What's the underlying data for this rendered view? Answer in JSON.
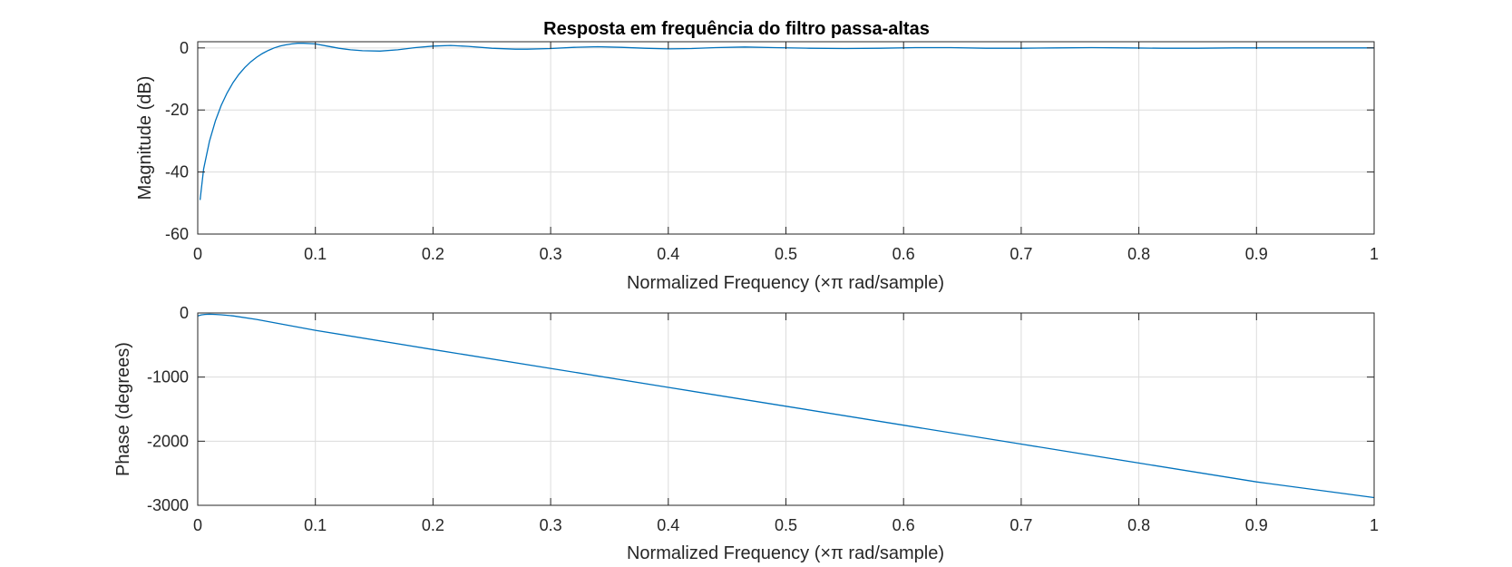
{
  "chart_data": [
    {
      "type": "line",
      "title": "Resposta em frequência do filtro passa-altas",
      "xlabel": "Normalized Frequency  (×π rad/sample)",
      "ylabel": "Magnitude (dB)",
      "xlim": [
        0,
        1
      ],
      "ylim": [
        -60,
        2
      ],
      "xticks": [
        0,
        0.1,
        0.2,
        0.3,
        0.4,
        0.5,
        0.6,
        0.7,
        0.8,
        0.9,
        1
      ],
      "xtick_labels": [
        "0",
        "0.1",
        "0.2",
        "0.3",
        "0.4",
        "0.5",
        "0.6",
        "0.7",
        "0.8",
        "0.9",
        "1"
      ],
      "yticks": [
        -60,
        -40,
        -20,
        0
      ],
      "ytick_labels": [
        "-60",
        "-40",
        "-20",
        "0"
      ],
      "grid": true,
      "line_color": "#0072BD",
      "series": [
        {
          "x": [
            0.002,
            0.005,
            0.01,
            0.015,
            0.02,
            0.025,
            0.03,
            0.035,
            0.04,
            0.045,
            0.05,
            0.055,
            0.06,
            0.065,
            0.07,
            0.075,
            0.08,
            0.085,
            0.09,
            0.1,
            0.11,
            0.12,
            0.13,
            0.14,
            0.155,
            0.17,
            0.185,
            0.2,
            0.215,
            0.23,
            0.25,
            0.27,
            0.28,
            0.3,
            0.32,
            0.34,
            0.36,
            0.38,
            0.4,
            0.42,
            0.44,
            0.465,
            0.49,
            0.52,
            0.55,
            0.58,
            0.61,
            0.64,
            0.67,
            0.7,
            0.73,
            0.76,
            0.79,
            0.82,
            0.85,
            0.88,
            0.91,
            0.94,
            0.97,
            1.0
          ],
          "y": [
            -49,
            -39,
            -30,
            -23.5,
            -18.5,
            -14.5,
            -11.2,
            -8.5,
            -6.3,
            -4.5,
            -3.0,
            -1.8,
            -0.8,
            0.0,
            0.6,
            1.0,
            1.3,
            1.5,
            1.5,
            1.3,
            0.6,
            -0.1,
            -0.6,
            -0.9,
            -1.0,
            -0.6,
            0.1,
            0.6,
            0.8,
            0.5,
            -0.1,
            -0.4,
            -0.4,
            -0.2,
            0.2,
            0.4,
            0.2,
            -0.1,
            -0.3,
            -0.2,
            0.1,
            0.3,
            0.1,
            -0.1,
            -0.2,
            -0.1,
            0.1,
            0.1,
            -0.1,
            -0.1,
            0.0,
            0.1,
            0.0,
            -0.1,
            -0.1,
            0.0,
            0.0,
            0.0,
            0.0,
            0.0
          ]
        }
      ]
    },
    {
      "type": "line",
      "title": "",
      "xlabel": "Normalized Frequency  (×π rad/sample)",
      "ylabel": "Phase (degrees)",
      "xlim": [
        0,
        1
      ],
      "ylim": [
        -3000,
        0
      ],
      "xticks": [
        0,
        0.1,
        0.2,
        0.3,
        0.4,
        0.5,
        0.6,
        0.7,
        0.8,
        0.9,
        1
      ],
      "xtick_labels": [
        "0",
        "0.1",
        "0.2",
        "0.3",
        "0.4",
        "0.5",
        "0.6",
        "0.7",
        "0.8",
        "0.9",
        "1"
      ],
      "yticks": [
        -3000,
        -2000,
        -1000,
        0
      ],
      "ytick_labels": [
        "-3000",
        "-2000",
        "-1000",
        "0"
      ],
      "grid": true,
      "line_color": "#0072BD",
      "series": [
        {
          "x": [
            0.0,
            0.003,
            0.006,
            0.01,
            0.015,
            0.02,
            0.03,
            0.05,
            0.1,
            0.2,
            0.3,
            0.4,
            0.5,
            0.6,
            0.7,
            0.8,
            0.9,
            1.0
          ],
          "y": [
            -45,
            -30,
            -22,
            -20,
            -22,
            -28,
            -45,
            -100,
            -270,
            -570,
            -865,
            -1160,
            -1455,
            -1750,
            -2045,
            -2340,
            -2635,
            -2880
          ]
        }
      ]
    }
  ]
}
